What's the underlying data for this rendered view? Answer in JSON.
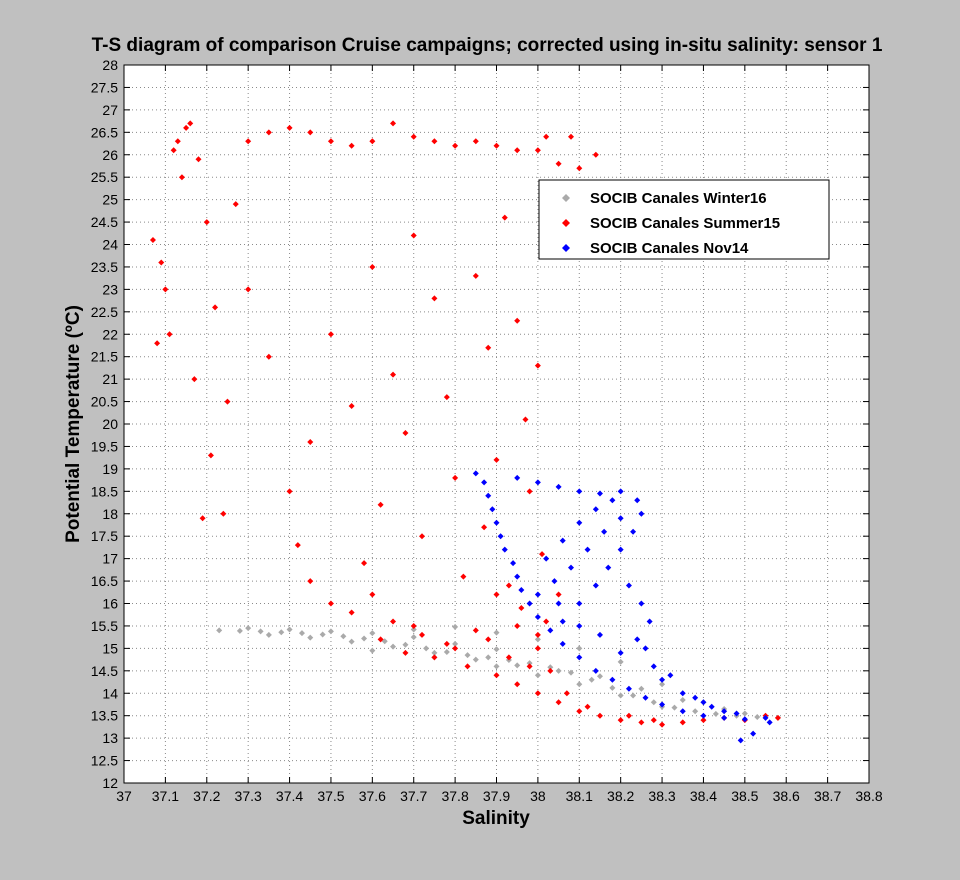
{
  "window": {
    "background": "#c0c0c0"
  },
  "chart_data": {
    "type": "scatter",
    "title": "T-S diagram of comparison Cruise campaigns; corrected using in-situ salinity: sensor 1",
    "xlabel": "Salinity",
    "ylabel": "Potential Temperature (ºC)",
    "xlim": [
      37,
      38.8
    ],
    "ylim": [
      12,
      28
    ],
    "xticks": [
      37,
      37.1,
      37.2,
      37.3,
      37.4,
      37.5,
      37.6,
      37.7,
      37.8,
      37.9,
      38,
      38.1,
      38.2,
      38.3,
      38.4,
      38.5,
      38.6,
      38.7,
      38.8
    ],
    "xtick_labels": [
      "37",
      "37.1",
      "37.2",
      "37.3",
      "37.4",
      "37.5",
      "37.6",
      "37.7",
      "37.8",
      "37.9",
      "38",
      "38.1",
      "38.2",
      "38.3",
      "38.4",
      "38.5",
      "38.6",
      "38.7",
      "38.8"
    ],
    "yticks": [
      12,
      12.5,
      13,
      13.5,
      14,
      14.5,
      15,
      15.5,
      16,
      16.5,
      17,
      17.5,
      18,
      18.5,
      19,
      19.5,
      20,
      20.5,
      21,
      21.5,
      22,
      22.5,
      23,
      23.5,
      24,
      24.5,
      25,
      25.5,
      26,
      26.5,
      27,
      27.5,
      28
    ],
    "ytick_labels": [
      "12",
      "12.5",
      "13",
      "13.5",
      "14",
      "14.5",
      "15",
      "15.5",
      "16",
      "16.5",
      "17",
      "17.5",
      "18",
      "18.5",
      "19",
      "19.5",
      "20",
      "20.5",
      "21",
      "21.5",
      "22",
      "22.5",
      "23",
      "23.5",
      "24",
      "24.5",
      "25",
      "25.5",
      "26",
      "26.5",
      "27",
      "27.5",
      "28"
    ],
    "grid": true,
    "legend_position": "top-right",
    "series": [
      {
        "name": "SOCIB Canales Winter16",
        "color": "#aaaaaa",
        "points": [
          [
            37.23,
            15.4
          ],
          [
            37.28,
            15.39
          ],
          [
            37.33,
            15.38
          ],
          [
            37.38,
            15.36
          ],
          [
            37.43,
            15.34
          ],
          [
            37.48,
            15.31
          ],
          [
            37.53,
            15.27
          ],
          [
            37.58,
            15.22
          ],
          [
            37.63,
            15.16
          ],
          [
            37.68,
            15.08
          ],
          [
            37.73,
            15.0
          ],
          [
            37.78,
            14.92
          ],
          [
            37.83,
            14.85
          ],
          [
            37.88,
            14.8
          ],
          [
            37.93,
            14.74
          ],
          [
            37.98,
            14.67
          ],
          [
            38.03,
            14.58
          ],
          [
            38.08,
            14.46
          ],
          [
            38.13,
            14.3
          ],
          [
            38.18,
            14.12
          ],
          [
            38.23,
            13.95
          ],
          [
            38.28,
            13.8
          ],
          [
            38.33,
            13.68
          ],
          [
            38.38,
            13.6
          ],
          [
            38.43,
            13.54
          ],
          [
            38.48,
            13.5
          ],
          [
            38.53,
            13.47
          ],
          [
            38.58,
            13.45
          ],
          [
            37.3,
            15.45
          ],
          [
            37.4,
            15.42
          ],
          [
            37.5,
            15.38
          ],
          [
            37.6,
            15.34
          ],
          [
            37.7,
            15.25
          ],
          [
            37.8,
            15.1
          ],
          [
            37.9,
            14.98
          ],
          [
            37.35,
            15.3
          ],
          [
            37.45,
            15.24
          ],
          [
            37.55,
            15.15
          ],
          [
            37.65,
            15.04
          ],
          [
            37.75,
            14.9
          ],
          [
            37.85,
            14.75
          ],
          [
            37.95,
            14.62
          ],
          [
            38.05,
            14.5
          ],
          [
            38.15,
            14.38
          ],
          [
            38.25,
            14.1
          ],
          [
            38.35,
            13.85
          ],
          [
            38.45,
            13.65
          ],
          [
            37.7,
            15.42
          ],
          [
            37.8,
            15.48
          ],
          [
            37.9,
            15.35
          ],
          [
            38.0,
            15.2
          ],
          [
            38.1,
            15.0
          ],
          [
            38.2,
            14.7
          ],
          [
            38.3,
            14.2
          ],
          [
            38.4,
            13.8
          ],
          [
            38.5,
            13.55
          ],
          [
            37.6,
            14.95
          ],
          [
            37.75,
            14.8
          ],
          [
            37.9,
            14.6
          ],
          [
            38.0,
            14.4
          ],
          [
            38.1,
            14.2
          ],
          [
            38.2,
            13.95
          ],
          [
            38.3,
            13.7
          ]
        ]
      },
      {
        "name": "SOCIB Canales Summer15",
        "color": "#ff0000",
        "points": [
          [
            37.08,
            21.8
          ],
          [
            37.09,
            23.6
          ],
          [
            37.07,
            24.1
          ],
          [
            37.12,
            26.1
          ],
          [
            37.13,
            26.3
          ],
          [
            37.15,
            26.6
          ],
          [
            37.16,
            26.7
          ],
          [
            37.14,
            25.5
          ],
          [
            37.18,
            25.9
          ],
          [
            37.11,
            22.0
          ],
          [
            37.1,
            23.0
          ],
          [
            37.17,
            21.0
          ],
          [
            37.2,
            24.5
          ],
          [
            37.22,
            22.6
          ],
          [
            37.25,
            20.5
          ],
          [
            37.27,
            24.9
          ],
          [
            37.19,
            17.9
          ],
          [
            37.24,
            18.0
          ],
          [
            37.21,
            19.3
          ],
          [
            37.3,
            26.3
          ],
          [
            37.35,
            26.5
          ],
          [
            37.4,
            26.6
          ],
          [
            37.45,
            26.5
          ],
          [
            37.5,
            26.3
          ],
          [
            37.55,
            26.2
          ],
          [
            37.6,
            26.3
          ],
          [
            37.65,
            26.7
          ],
          [
            37.7,
            26.4
          ],
          [
            37.75,
            26.3
          ],
          [
            37.8,
            26.2
          ],
          [
            37.85,
            26.3
          ],
          [
            37.9,
            26.2
          ],
          [
            37.95,
            26.1
          ],
          [
            38.0,
            26.1
          ],
          [
            38.02,
            26.4
          ],
          [
            38.05,
            25.8
          ],
          [
            38.08,
            26.4
          ],
          [
            38.1,
            25.7
          ],
          [
            38.14,
            26.0
          ],
          [
            37.3,
            23.0
          ],
          [
            37.35,
            21.5
          ],
          [
            37.4,
            18.5
          ],
          [
            37.42,
            17.3
          ],
          [
            37.45,
            19.6
          ],
          [
            37.5,
            22.0
          ],
          [
            37.55,
            20.4
          ],
          [
            37.58,
            16.9
          ],
          [
            37.6,
            23.5
          ],
          [
            37.62,
            18.2
          ],
          [
            37.65,
            21.1
          ],
          [
            37.68,
            19.8
          ],
          [
            37.7,
            24.2
          ],
          [
            37.72,
            17.5
          ],
          [
            37.75,
            22.8
          ],
          [
            37.78,
            20.6
          ],
          [
            37.8,
            18.8
          ],
          [
            37.82,
            16.6
          ],
          [
            37.85,
            23.3
          ],
          [
            37.88,
            21.7
          ],
          [
            37.9,
            19.2
          ],
          [
            37.92,
            24.6
          ],
          [
            37.95,
            22.3
          ],
          [
            37.97,
            20.1
          ],
          [
            38.0,
            21.3
          ],
          [
            37.98,
            18.5
          ],
          [
            37.87,
            17.7
          ],
          [
            37.93,
            16.4
          ],
          [
            38.01,
            17.1
          ],
          [
            37.96,
            15.9
          ],
          [
            37.9,
            16.2
          ],
          [
            37.85,
            15.4
          ],
          [
            37.8,
            15.0
          ],
          [
            37.7,
            15.5
          ],
          [
            37.75,
            14.8
          ],
          [
            37.83,
            14.6
          ],
          [
            37.9,
            14.4
          ],
          [
            37.95,
            14.2
          ],
          [
            38.0,
            14.0
          ],
          [
            38.05,
            13.8
          ],
          [
            38.1,
            13.6
          ],
          [
            38.15,
            13.5
          ],
          [
            38.2,
            13.4
          ],
          [
            38.25,
            13.35
          ],
          [
            38.3,
            13.3
          ],
          [
            38.35,
            13.35
          ],
          [
            38.4,
            13.4
          ],
          [
            38.45,
            13.45
          ],
          [
            38.5,
            13.4
          ],
          [
            38.55,
            13.5
          ],
          [
            38.58,
            13.45
          ],
          [
            37.65,
            15.6
          ],
          [
            37.6,
            16.2
          ],
          [
            37.55,
            15.8
          ],
          [
            37.5,
            16.0
          ],
          [
            37.45,
            16.5
          ],
          [
            38.0,
            15.0
          ],
          [
            38.03,
            14.5
          ],
          [
            38.07,
            14.0
          ],
          [
            37.88,
            15.2
          ],
          [
            37.93,
            14.8
          ],
          [
            37.98,
            14.6
          ],
          [
            38.12,
            13.7
          ],
          [
            38.22,
            13.5
          ],
          [
            38.28,
            13.4
          ],
          [
            37.72,
            15.3
          ],
          [
            37.78,
            15.1
          ],
          [
            37.68,
            14.9
          ],
          [
            37.62,
            15.2
          ],
          [
            38.05,
            16.2
          ],
          [
            38.02,
            15.6
          ],
          [
            38.0,
            15.3
          ],
          [
            37.95,
            15.5
          ]
        ]
      },
      {
        "name": "SOCIB Canales Nov14",
        "color": "#0000ff",
        "points": [
          [
            37.85,
            18.9
          ],
          [
            37.87,
            18.7
          ],
          [
            37.88,
            18.4
          ],
          [
            37.89,
            18.1
          ],
          [
            37.9,
            17.8
          ],
          [
            37.91,
            17.5
          ],
          [
            37.92,
            17.2
          ],
          [
            37.94,
            16.9
          ],
          [
            37.95,
            16.6
          ],
          [
            37.96,
            16.3
          ],
          [
            37.98,
            16.0
          ],
          [
            38.0,
            15.7
          ],
          [
            38.03,
            15.4
          ],
          [
            38.06,
            15.1
          ],
          [
            38.1,
            14.8
          ],
          [
            38.14,
            14.5
          ],
          [
            38.18,
            14.3
          ],
          [
            38.22,
            14.1
          ],
          [
            38.26,
            13.9
          ],
          [
            38.3,
            13.75
          ],
          [
            38.35,
            13.6
          ],
          [
            38.4,
            13.5
          ],
          [
            38.45,
            13.45
          ],
          [
            38.5,
            13.42
          ],
          [
            38.55,
            13.45
          ],
          [
            38.52,
            13.1
          ],
          [
            38.49,
            12.95
          ],
          [
            38.56,
            13.35
          ],
          [
            37.95,
            18.8
          ],
          [
            38.0,
            18.7
          ],
          [
            38.05,
            18.6
          ],
          [
            38.1,
            18.5
          ],
          [
            38.15,
            18.45
          ],
          [
            38.2,
            18.5
          ],
          [
            38.24,
            18.3
          ],
          [
            38.25,
            18.0
          ],
          [
            38.23,
            17.6
          ],
          [
            38.2,
            17.2
          ],
          [
            38.17,
            16.8
          ],
          [
            38.14,
            16.4
          ],
          [
            38.1,
            16.0
          ],
          [
            38.06,
            15.6
          ],
          [
            38.22,
            16.4
          ],
          [
            38.25,
            16.0
          ],
          [
            38.27,
            15.6
          ],
          [
            38.24,
            15.2
          ],
          [
            38.2,
            14.9
          ],
          [
            38.15,
            15.3
          ],
          [
            38.1,
            15.5
          ],
          [
            38.05,
            16.0
          ],
          [
            38.0,
            16.2
          ],
          [
            38.02,
            17.0
          ],
          [
            38.06,
            17.4
          ],
          [
            38.1,
            17.8
          ],
          [
            38.14,
            18.1
          ],
          [
            38.18,
            18.3
          ],
          [
            38.08,
            16.8
          ],
          [
            38.12,
            17.2
          ],
          [
            38.16,
            17.6
          ],
          [
            38.2,
            17.9
          ],
          [
            38.04,
            16.5
          ],
          [
            38.3,
            14.3
          ],
          [
            38.35,
            14.0
          ],
          [
            38.4,
            13.8
          ],
          [
            38.45,
            13.6
          ],
          [
            38.28,
            14.6
          ],
          [
            38.26,
            15.0
          ],
          [
            38.32,
            14.4
          ],
          [
            38.38,
            13.9
          ],
          [
            38.42,
            13.7
          ],
          [
            38.48,
            13.55
          ]
        ]
      }
    ]
  }
}
